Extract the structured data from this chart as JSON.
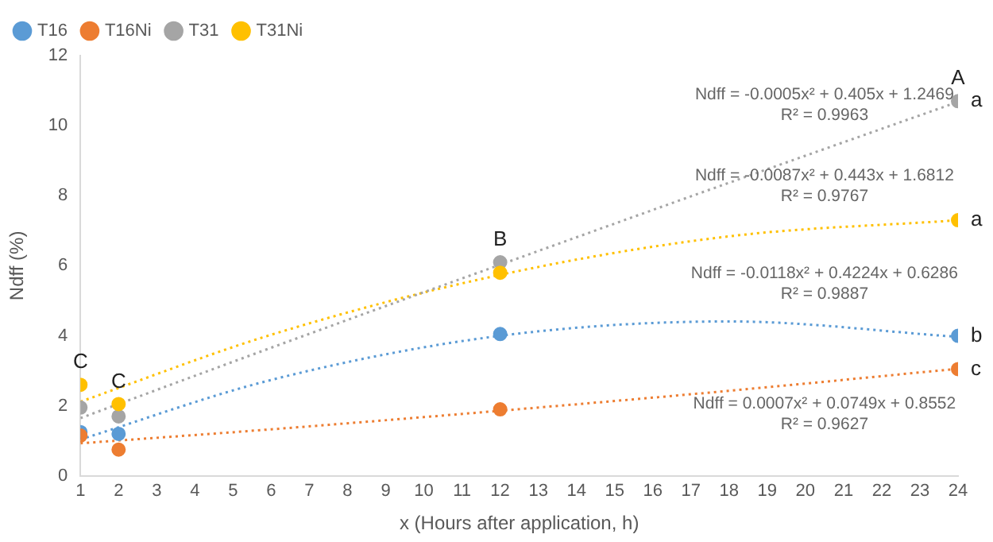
{
  "chart_data": {
    "type": "scatter",
    "xlabel": "x (Hours after application, h)",
    "ylabel": "Ndff (%)",
    "xlim": [
      1,
      24
    ],
    "xticks": [
      1,
      2,
      3,
      4,
      5,
      6,
      7,
      8,
      9,
      10,
      11,
      12,
      13,
      14,
      15,
      16,
      17,
      18,
      19,
      20,
      21,
      22,
      23,
      24
    ],
    "ylim": [
      0,
      12
    ],
    "yticks": [
      0,
      2,
      4,
      6,
      8,
      10,
      12
    ],
    "grid": false,
    "legend": "top left",
    "marker": "circle",
    "series": [
      {
        "name": "T16",
        "color": "#5b9bd5",
        "x": [
          1,
          2,
          12,
          24
        ],
        "values": [
          1.25,
          1.2,
          4.05,
          4.0
        ]
      },
      {
        "name": "T16Ni",
        "color": "#ed7d31",
        "x": [
          1,
          2,
          12,
          24
        ],
        "values": [
          1.15,
          0.75,
          1.9,
          3.05
        ]
      },
      {
        "name": "T31",
        "color": "#a5a5a5",
        "x": [
          1,
          2,
          12,
          24
        ],
        "values": [
          1.95,
          1.7,
          6.1,
          10.7
        ]
      },
      {
        "name": "T31Ni",
        "color": "#ffc000",
        "x": [
          1,
          2,
          12,
          24
        ],
        "values": [
          2.6,
          2.05,
          5.8,
          7.3
        ]
      },
      {
        "type": "line",
        "color": "#a5a5a5",
        "line_style": "dotted",
        "marker": "none",
        "x": [
          1,
          6,
          12,
          18,
          24
        ],
        "values": [
          1.65,
          3.66,
          6.03,
          8.37,
          10.68
        ]
      },
      {
        "type": "line",
        "color": "#ffc000",
        "line_style": "dotted",
        "marker": "none",
        "x": [
          1,
          6,
          12,
          18,
          24
        ],
        "values": [
          2.12,
          4.03,
          5.74,
          6.84,
          7.3
        ]
      },
      {
        "type": "line",
        "color": "#5b9bd5",
        "line_style": "dotted",
        "marker": "none",
        "x": [
          1,
          6,
          12,
          18,
          24
        ],
        "values": [
          1.04,
          2.74,
          4.0,
          4.41,
          3.97
        ]
      },
      {
        "type": "line",
        "color": "#ed7d31",
        "line_style": "dotted",
        "marker": "none",
        "x": [
          1,
          6,
          12,
          18,
          24
        ],
        "values": [
          0.93,
          1.33,
          1.86,
          2.43,
          3.06
        ]
      }
    ],
    "annotations": [
      "Ndff = -0.0005x² + 0.405x + 1.2469",
      "R² = 0.9963",
      "Ndff = -0.0087x² + 0.443x + 1.6812",
      "R² = 0.9767",
      "Ndff = -0.0118x² + 0.4224x + 0.6286",
      "R² = 0.9887",
      "Ndff = 0.0007x² + 0.0749x + 0.8552",
      "R² = 0.9627",
      {
        "text": "A",
        "x": 24,
        "y": 10.7
      },
      {
        "text": "a",
        "x": 24,
        "y": 10.7
      },
      {
        "text": "a",
        "x": 24,
        "y": 7.3
      },
      {
        "text": "b",
        "x": 24,
        "y": 4.0
      },
      {
        "text": "c",
        "x": 24,
        "y": 3.05
      },
      {
        "text": "B",
        "x": 12,
        "y": 6.1
      },
      {
        "text": "C",
        "x": 1,
        "y": 2.6
      },
      {
        "text": "C",
        "x": 2,
        "y": 2.05
      }
    ]
  }
}
